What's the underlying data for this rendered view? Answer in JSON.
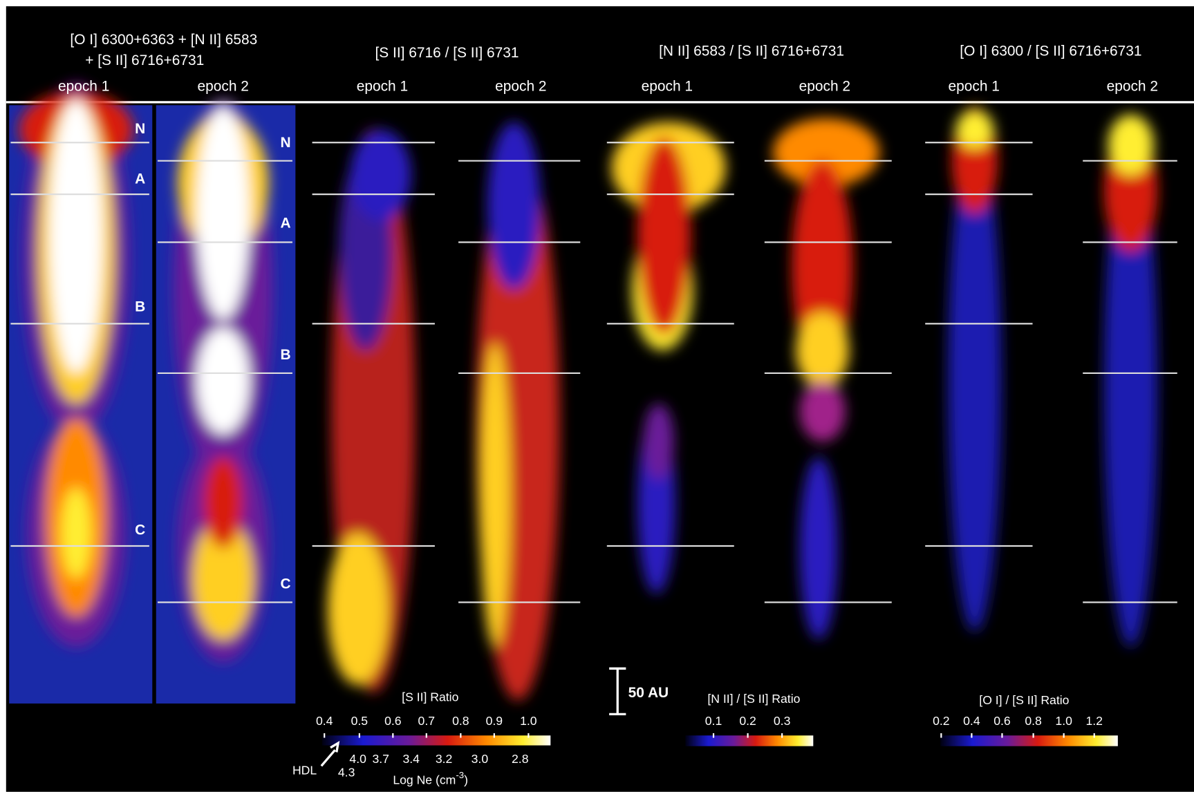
{
  "header": {
    "titles": [
      {
        "lines": [
          "[O I] 6300+6363 + [N II] 6583",
          "+ [S II] 6716+6731"
        ]
      },
      {
        "lines": [
          "[S II] 6716 / [S II] 6731"
        ]
      },
      {
        "lines": [
          "[N II] 6583 / [S II] 6716+6731"
        ]
      },
      {
        "lines": [
          "[O I] 6300 / [S II] 6716+6731"
        ]
      }
    ]
  },
  "panels": [
    {
      "epoch": "epoch 1",
      "labels": [
        "N",
        "A",
        "B",
        "C"
      ]
    },
    {
      "epoch": "epoch 2",
      "labels": [
        "N",
        "A",
        "B",
        "C"
      ]
    },
    {
      "epoch": "epoch 1"
    },
    {
      "epoch": "epoch 2"
    },
    {
      "epoch": "epoch 1"
    },
    {
      "epoch": "epoch 2"
    },
    {
      "epoch": "epoch 1"
    },
    {
      "epoch": "epoch 2"
    }
  ],
  "colorbars": [
    {
      "title": "[S II] Ratio",
      "ticks": [
        "0.4",
        "0.5",
        "0.6",
        "0.7",
        "0.8",
        "0.9",
        "1.0"
      ],
      "density_ticks": [
        "4.3",
        "4.0",
        "3.7",
        "3.4",
        "3.2",
        "3.0",
        "2.8"
      ],
      "limit_label": "HDL",
      "density_label": "Log Ne (cm",
      "density_unit_exponent": "-3",
      "density_label_end": ")"
    },
    {
      "title": "[N II] / [S II] Ratio",
      "ticks": [
        "0.1",
        "0.2",
        "0.3"
      ]
    },
    {
      "title": "[O I] / [S II] Ratio",
      "ticks": [
        "0.2",
        "0.4",
        "0.6",
        "0.8",
        "1.0",
        "1.2"
      ]
    }
  ],
  "scale_bar": "50 AU"
}
